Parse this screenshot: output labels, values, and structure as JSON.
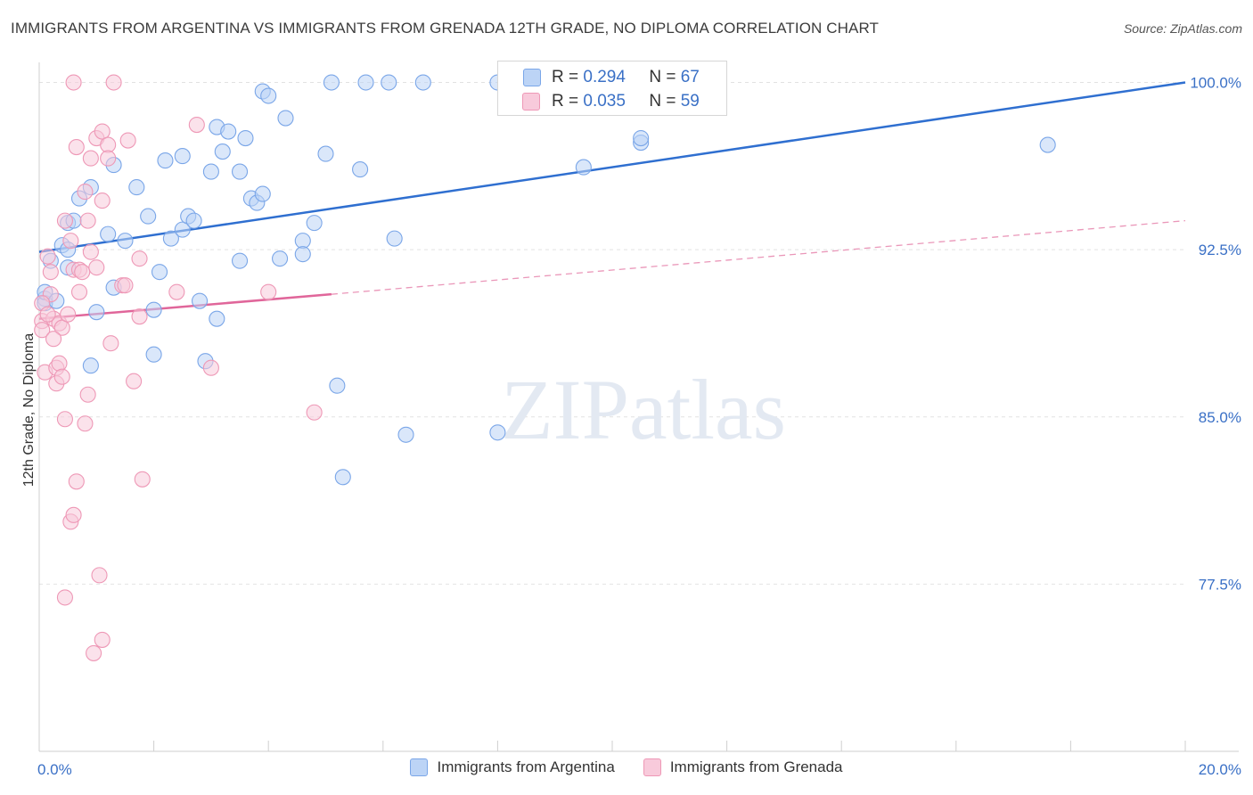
{
  "title": "IMMIGRANTS FROM ARGENTINA VS IMMIGRANTS FROM GRENADA 12TH GRADE, NO DIPLOMA CORRELATION CHART",
  "source": "Source: ZipAtlas.com",
  "watermark": "ZIPatlas",
  "legend": {
    "rows": [
      {
        "r_label": "R =",
        "r_value": "0.294",
        "n_label": "N =",
        "n_value": "67",
        "color": "#7aa6e8"
      },
      {
        "r_label": "R =",
        "r_value": "0.035",
        "n_label": "N =",
        "n_value": "59",
        "color": "#ee98b6"
      }
    ]
  },
  "chart_data": {
    "type": "scatter",
    "title": "IMMIGRANTS FROM ARGENTINA VS IMMIGRANTS FROM GRENADA 12TH GRADE, NO DIPLOMA CORRELATION CHART",
    "xlabel": "",
    "ylabel": "12th Grade, No Diploma",
    "xlim": [
      0,
      20
    ],
    "ylim": [
      70,
      100.9
    ],
    "x_tick_labels": [
      "0.0%",
      "20.0%"
    ],
    "y_ticks": [
      77.5,
      85.0,
      92.5,
      100.0
    ],
    "y_tick_labels": [
      "77.5%",
      "85.0%",
      "92.5%",
      "100.0%"
    ],
    "grid": true,
    "series": [
      {
        "name": "Immigrants from Argentina",
        "color": "#7aa6e8",
        "fill": "#bcd4f6",
        "trend": {
          "x0": 0.0,
          "y0": 92.4,
          "x1": 20.0,
          "y1": 100.0
        },
        "points": [
          [
            0.1,
            90.3
          ],
          [
            0.1,
            90.1
          ],
          [
            0.2,
            92.0
          ],
          [
            0.4,
            92.7
          ],
          [
            0.5,
            91.7
          ],
          [
            0.5,
            92.5
          ],
          [
            0.5,
            93.7
          ],
          [
            0.6,
            93.8
          ],
          [
            0.7,
            94.8
          ],
          [
            0.9,
            95.3
          ],
          [
            0.9,
            87.3
          ],
          [
            1.0,
            89.7
          ],
          [
            1.2,
            93.2
          ],
          [
            1.3,
            90.8
          ],
          [
            1.3,
            96.3
          ],
          [
            1.5,
            92.9
          ],
          [
            1.7,
            95.3
          ],
          [
            1.9,
            94.0
          ],
          [
            2.0,
            89.8
          ],
          [
            2.0,
            87.8
          ],
          [
            2.1,
            91.5
          ],
          [
            2.2,
            96.5
          ],
          [
            2.3,
            93.0
          ],
          [
            2.5,
            93.4
          ],
          [
            2.5,
            96.7
          ],
          [
            2.6,
            94.0
          ],
          [
            2.7,
            93.8
          ],
          [
            2.8,
            90.2
          ],
          [
            2.9,
            87.5
          ],
          [
            3.0,
            96.0
          ],
          [
            3.1,
            89.4
          ],
          [
            3.1,
            98.0
          ],
          [
            3.2,
            96.9
          ],
          [
            3.3,
            97.8
          ],
          [
            3.5,
            96.0
          ],
          [
            3.5,
            92.0
          ],
          [
            3.6,
            97.5
          ],
          [
            3.7,
            94.8
          ],
          [
            3.8,
            94.6
          ],
          [
            3.9,
            95.0
          ],
          [
            3.9,
            99.6
          ],
          [
            4.0,
            99.4
          ],
          [
            4.2,
            92.1
          ],
          [
            4.3,
            98.4
          ],
          [
            4.6,
            92.9
          ],
          [
            4.6,
            92.3
          ],
          [
            4.8,
            93.7
          ],
          [
            5.0,
            96.8
          ],
          [
            5.1,
            100.0
          ],
          [
            5.2,
            86.4
          ],
          [
            5.3,
            82.3
          ],
          [
            5.6,
            96.1
          ],
          [
            5.7,
            100.0
          ],
          [
            6.1,
            100.0
          ],
          [
            6.2,
            93.0
          ],
          [
            6.4,
            84.2
          ],
          [
            6.7,
            100.0
          ],
          [
            8.0,
            84.3
          ],
          [
            8.0,
            100.0
          ],
          [
            9.3,
            100.0
          ],
          [
            9.5,
            96.2
          ],
          [
            10.0,
            100.0
          ],
          [
            10.5,
            97.3
          ],
          [
            10.5,
            97.5
          ],
          [
            17.6,
            97.2
          ],
          [
            0.1,
            90.6
          ],
          [
            0.3,
            90.2
          ]
        ]
      },
      {
        "name": "Immigrants from Grenada",
        "color": "#ee98b6",
        "fill": "#f8cadb",
        "trend": {
          "x0": 0.0,
          "y0": 89.4,
          "x1": 5.1,
          "y1": 90.5
        },
        "trend_dashed": {
          "x0": 5.1,
          "y0": 90.5,
          "x1": 20.0,
          "y1": 93.8
        },
        "points": [
          [
            0.05,
            89.3
          ],
          [
            0.05,
            88.9
          ],
          [
            0.1,
            87.0
          ],
          [
            0.15,
            92.2
          ],
          [
            0.2,
            90.5
          ],
          [
            0.2,
            91.5
          ],
          [
            0.25,
            89.4
          ],
          [
            0.3,
            86.5
          ],
          [
            0.3,
            87.2
          ],
          [
            0.35,
            87.4
          ],
          [
            0.35,
            89.2
          ],
          [
            0.4,
            89.0
          ],
          [
            0.4,
            86.8
          ],
          [
            0.45,
            84.9
          ],
          [
            0.45,
            93.8
          ],
          [
            0.5,
            89.6
          ],
          [
            0.55,
            92.9
          ],
          [
            0.55,
            80.3
          ],
          [
            0.6,
            80.6
          ],
          [
            0.6,
            100.0
          ],
          [
            0.6,
            91.6
          ],
          [
            0.65,
            97.1
          ],
          [
            0.65,
            82.1
          ],
          [
            0.7,
            91.6
          ],
          [
            0.7,
            90.6
          ],
          [
            0.75,
            91.5
          ],
          [
            0.8,
            84.7
          ],
          [
            0.8,
            95.1
          ],
          [
            0.85,
            86.0
          ],
          [
            0.85,
            93.8
          ],
          [
            0.9,
            96.6
          ],
          [
            0.9,
            92.4
          ],
          [
            1.0,
            97.5
          ],
          [
            1.0,
            91.7
          ],
          [
            1.05,
            77.9
          ],
          [
            1.1,
            97.8
          ],
          [
            1.1,
            94.7
          ],
          [
            1.1,
            75.0
          ],
          [
            1.2,
            97.2
          ],
          [
            1.2,
            96.6
          ],
          [
            1.25,
            88.3
          ],
          [
            1.3,
            100.0
          ],
          [
            1.45,
            90.9
          ],
          [
            1.5,
            90.9
          ],
          [
            1.55,
            97.4
          ],
          [
            1.65,
            86.6
          ],
          [
            1.75,
            89.5
          ],
          [
            1.75,
            92.1
          ],
          [
            1.8,
            82.2
          ],
          [
            2.4,
            90.6
          ],
          [
            2.75,
            98.1
          ],
          [
            3.0,
            87.2
          ],
          [
            4.0,
            90.6
          ],
          [
            4.8,
            85.2
          ],
          [
            0.45,
            76.9
          ],
          [
            0.95,
            74.4
          ],
          [
            0.05,
            90.1
          ],
          [
            0.15,
            89.6
          ],
          [
            0.25,
            88.5
          ]
        ]
      }
    ]
  }
}
